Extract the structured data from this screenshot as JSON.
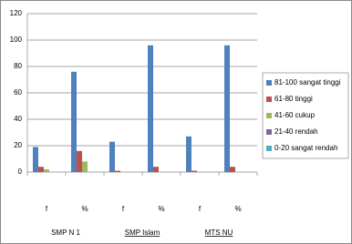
{
  "chart_data": {
    "type": "bar",
    "categories": [
      "f",
      "%",
      "f",
      "%",
      "f",
      "%"
    ],
    "groups": [
      {
        "label": "SMP N 1",
        "underline": false
      },
      {
        "label": "SMP Islam",
        "underline": true
      },
      {
        "label": "MTS NU",
        "underline": true
      }
    ],
    "series": [
      {
        "name": "81-100 sangat tinggi",
        "color": "#4f81bd",
        "values": [
          19,
          76,
          23,
          96,
          27,
          96
        ]
      },
      {
        "name": "61-80 tinggi",
        "color": "#c0504d",
        "values": [
          4,
          16,
          1,
          4,
          1,
          4
        ]
      },
      {
        "name": "41-60 cukup",
        "color": "#9bbb59",
        "values": [
          2,
          8,
          0,
          0,
          0,
          0
        ]
      },
      {
        "name": "21-40 rendah",
        "color": "#8064a2",
        "values": [
          0,
          0,
          0,
          0,
          0,
          0
        ]
      },
      {
        "name": "0-20 sangat rendah",
        "color": "#4bacc6",
        "values": [
          0,
          0,
          0,
          0,
          0,
          0
        ]
      }
    ],
    "ylim": [
      0,
      120
    ],
    "yticks": [
      0,
      20,
      40,
      60,
      80,
      100,
      120
    ],
    "grid": true,
    "legend": "right"
  }
}
